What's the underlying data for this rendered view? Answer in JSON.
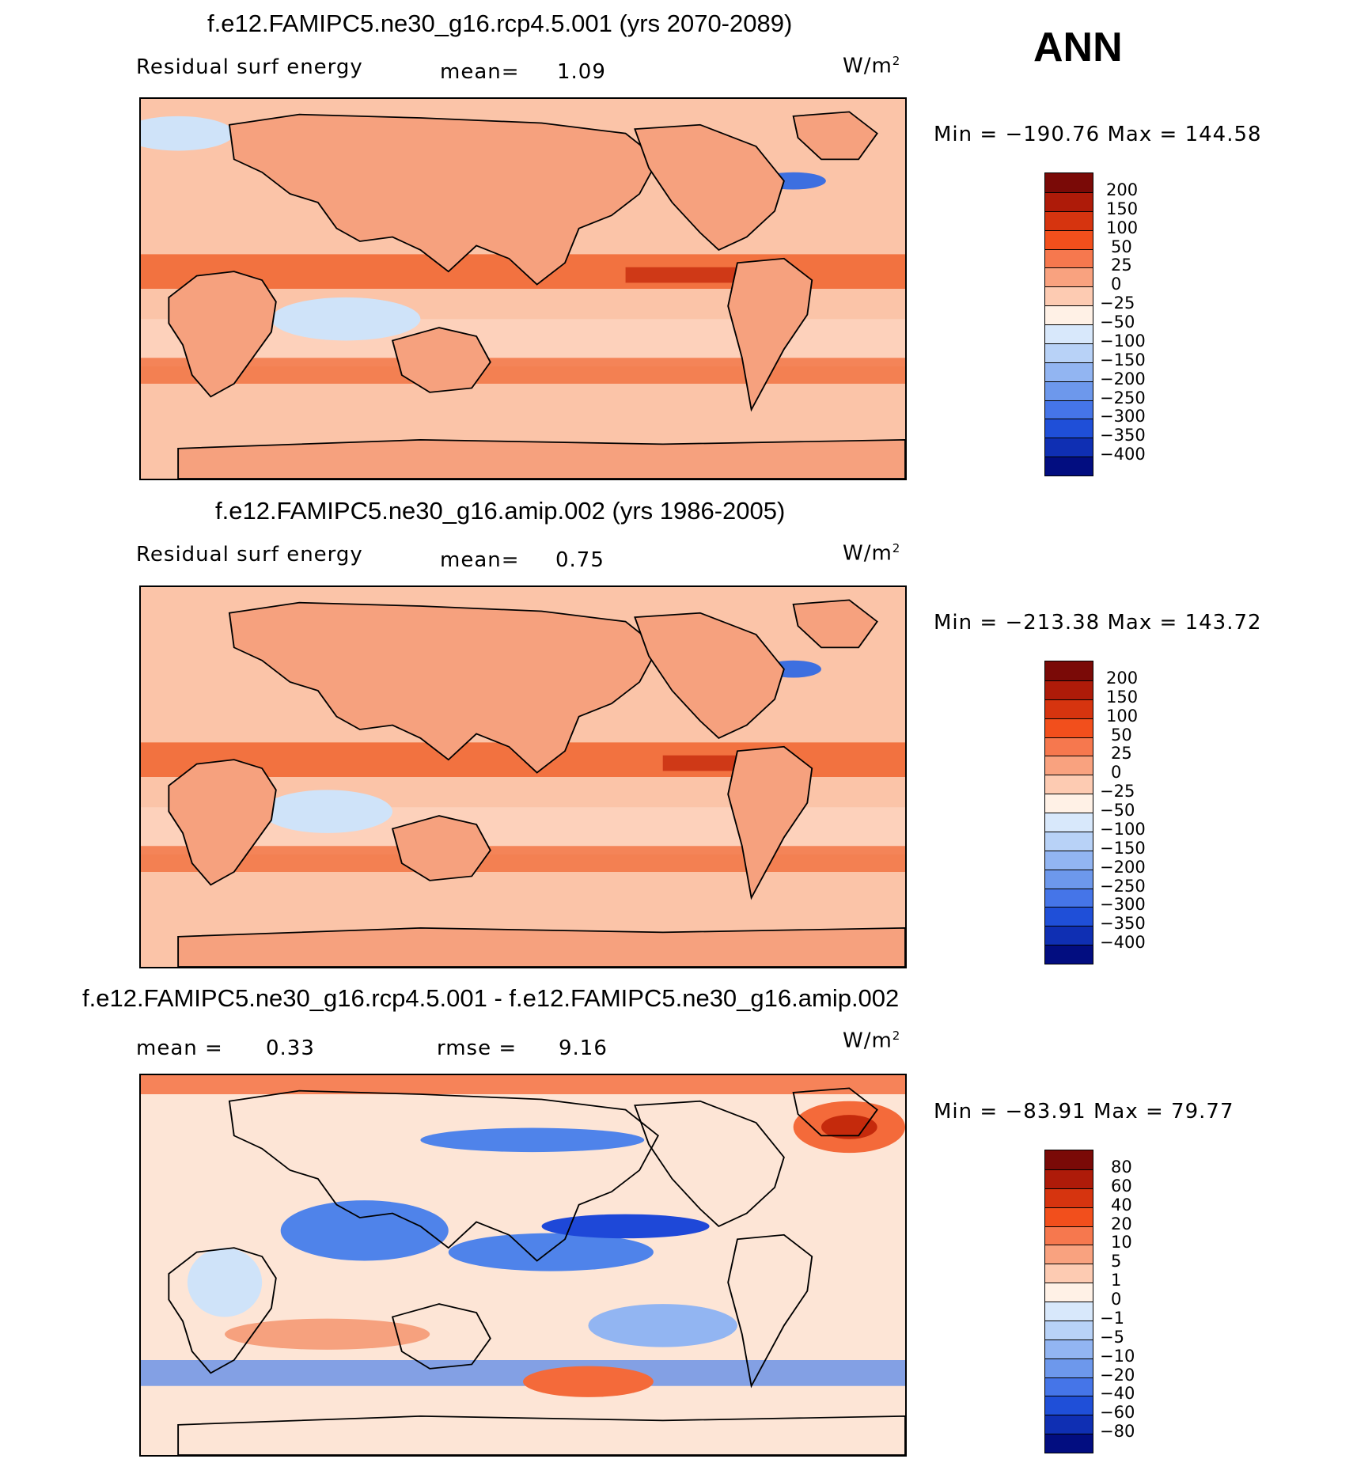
{
  "season": "ANN",
  "colors": {
    "land": "#f6a17e",
    "ocean_base": "#fbc4a8",
    "warm_band": "#f0642e",
    "cold_patch": "#cfe3f9",
    "diff_land": "#fde5d6",
    "diff_blue": "#4f83ea",
    "diff_deepblue": "#1e48d8",
    "diff_red": "#f46a3a"
  },
  "panels": [
    {
      "title": "f.e12.FAMIPC5.ne30_g16.rcp4.5.001 (yrs 2070-2089)",
      "variable": "Residual surf energy",
      "mean_label": "mean=",
      "mean_value": "1.09",
      "units": "W/m",
      "units_exp": "2",
      "min_label": "Min",
      "min_value": "−190.76",
      "max_label": "Max",
      "max_value": "144.58",
      "ticks": [
        "200",
        "150",
        "100",
        "50",
        "25",
        "0",
        "−25",
        "−50",
        "−100",
        "−150",
        "−200",
        "−250",
        "−300",
        "−350",
        "−400"
      ],
      "colors": [
        "#7a0a07",
        "#ae1b09",
        "#d6340f",
        "#f24f1c",
        "#f6784e",
        "#f9a27f",
        "#fdcbb2",
        "#fff1e6",
        "#d8e8fb",
        "#b8d2f7",
        "#92b5f2",
        "#6d98ec",
        "#4575e8",
        "#1f4fd8",
        "#0f2fb3",
        "#020d80"
      ]
    },
    {
      "title": "f.e12.FAMIPC5.ne30_g16.amip.002 (yrs 1986-2005)",
      "variable": "Residual surf energy",
      "mean_label": "mean=",
      "mean_value": "0.75",
      "units": "W/m",
      "units_exp": "2",
      "min_label": "Min",
      "min_value": "−213.38",
      "max_label": "Max",
      "max_value": "143.72",
      "ticks": [
        "200",
        "150",
        "100",
        "50",
        "25",
        "0",
        "−25",
        "−50",
        "−100",
        "−150",
        "−200",
        "−250",
        "−300",
        "−350",
        "−400"
      ],
      "colors": [
        "#7a0a07",
        "#ae1b09",
        "#d6340f",
        "#f24f1c",
        "#f6784e",
        "#f9a27f",
        "#fdcbb2",
        "#fff1e6",
        "#d8e8fb",
        "#b8d2f7",
        "#92b5f2",
        "#6d98ec",
        "#4575e8",
        "#1f4fd8",
        "#0f2fb3",
        "#020d80"
      ]
    },
    {
      "title": "f.e12.FAMIPC5.ne30_g16.rcp4.5.001 - f.e12.FAMIPC5.ne30_g16.amip.002",
      "mean_label": "mean =",
      "mean_value": "0.33",
      "rmse_label": "rmse =",
      "rmse_value": "9.16",
      "units": "W/m",
      "units_exp": "2",
      "min_label": "Min",
      "min_value": "−83.91",
      "max_label": "Max",
      "max_value": "79.77",
      "ticks": [
        "80",
        "60",
        "40",
        "20",
        "10",
        "5",
        "1",
        "0",
        "−1",
        "−5",
        "−10",
        "−20",
        "−40",
        "−60",
        "−80"
      ],
      "colors": [
        "#7a0a07",
        "#ae1b09",
        "#d6340f",
        "#f24f1c",
        "#f6784e",
        "#f9a27f",
        "#fdcbb2",
        "#fff1e6",
        "#d8e8fb",
        "#b8d2f7",
        "#92b5f2",
        "#6d98ec",
        "#4575e8",
        "#1f4fd8",
        "#0f2fb3",
        "#020d80"
      ]
    }
  ]
}
